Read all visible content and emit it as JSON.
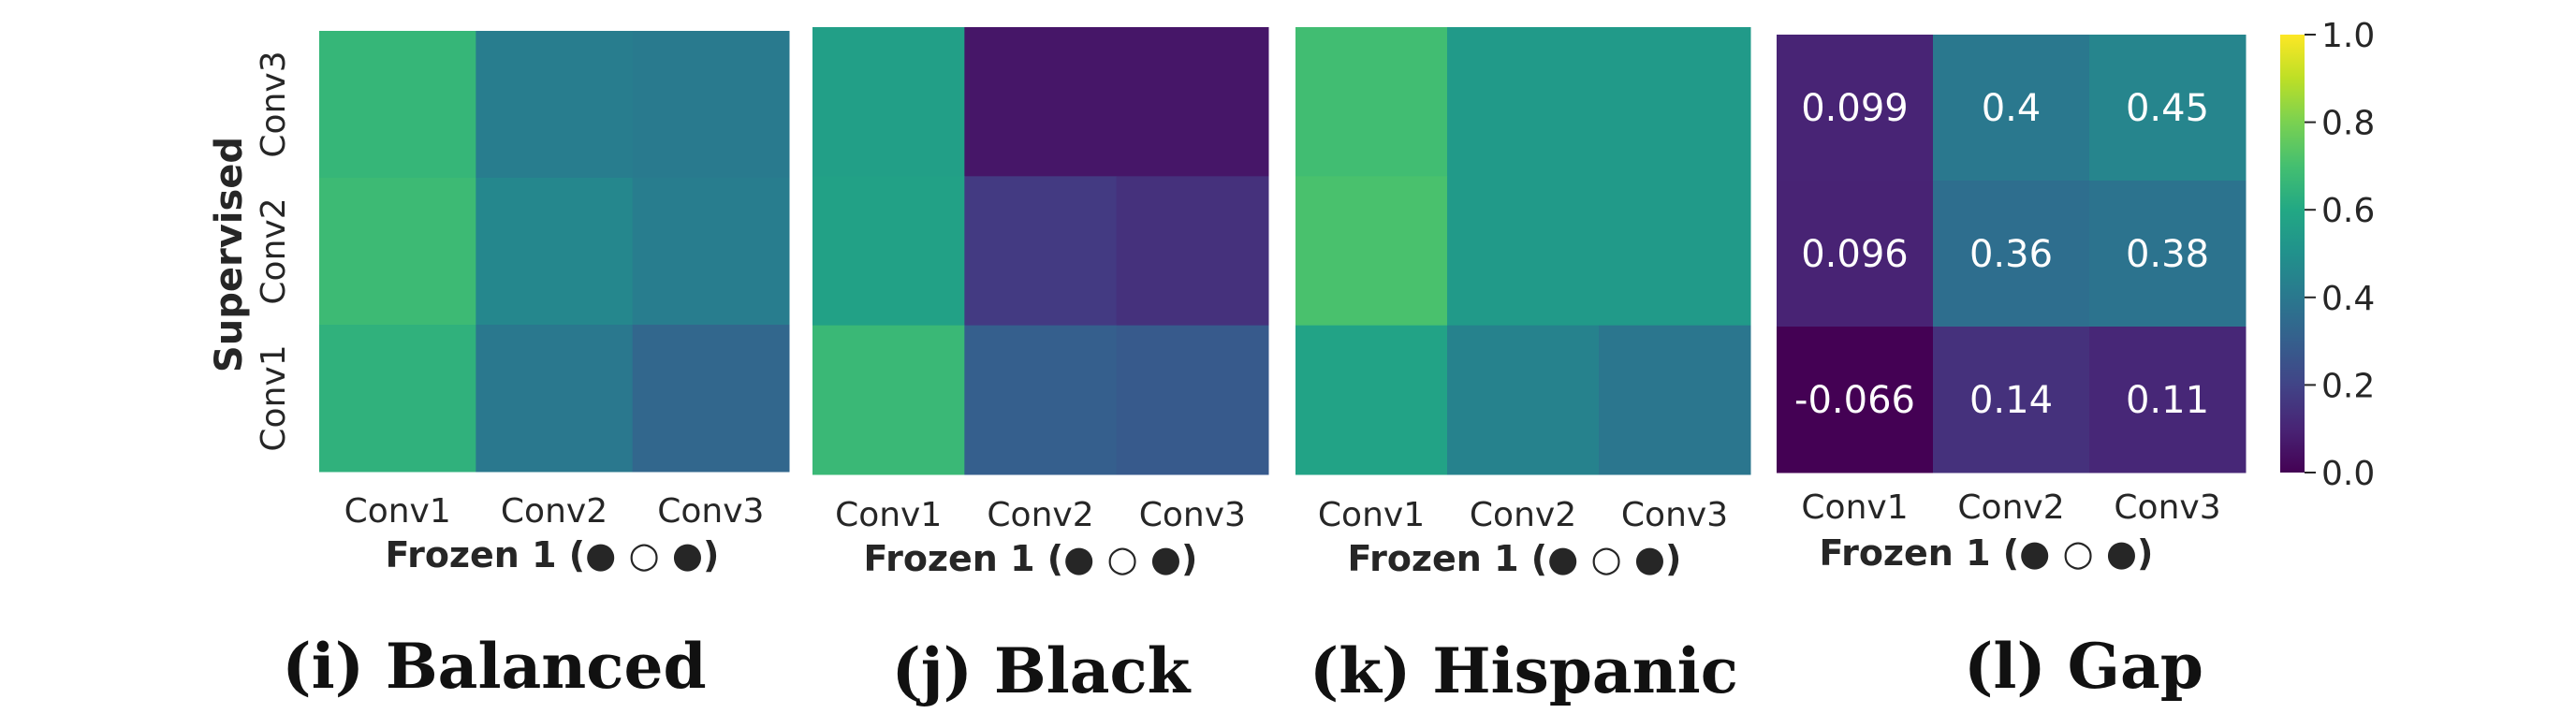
{
  "chart_data": [
    {
      "type": "heatmap",
      "caption": "(i) Balanced",
      "xlabel": "Frozen 1 (● ○ ●)",
      "ylabel": "Supervised",
      "x_categories": [
        "Conv1",
        "Conv2",
        "Conv3"
      ],
      "y_categories": [
        "Conv3",
        "Conv2",
        "Conv1"
      ],
      "values": [
        [
          0.66,
          0.42,
          0.41
        ],
        [
          0.68,
          0.46,
          0.42
        ],
        [
          0.64,
          0.4,
          0.33
        ]
      ],
      "vmin": 0.0,
      "vmax": 1.0
    },
    {
      "type": "heatmap",
      "caption": "(j) Black",
      "xlabel": "Frozen 1 (● ○ ●)",
      "x_categories": [
        "Conv1",
        "Conv2",
        "Conv3"
      ],
      "y_categories": [
        "Conv3",
        "Conv2",
        "Conv1"
      ],
      "values": [
        [
          0.56,
          0.06,
          0.06
        ],
        [
          0.57,
          0.17,
          0.14
        ],
        [
          0.67,
          0.3,
          0.28
        ]
      ],
      "vmin": 0.0,
      "vmax": 1.0
    },
    {
      "type": "heatmap",
      "caption": "(k) Hispanic",
      "xlabel": "Frozen 1 (● ○ ●)",
      "x_categories": [
        "Conv1",
        "Conv2",
        "Conv3"
      ],
      "y_categories": [
        "Conv3",
        "Conv2",
        "Conv1"
      ],
      "values": [
        [
          0.69,
          0.54,
          0.54
        ],
        [
          0.71,
          0.54,
          0.54
        ],
        [
          0.58,
          0.44,
          0.39
        ]
      ],
      "vmin": 0.0,
      "vmax": 1.0
    },
    {
      "type": "heatmap",
      "caption": "(l) Gap",
      "xlabel": "Frozen 1 (● ○ ●)",
      "x_categories": [
        "Conv1",
        "Conv2",
        "Conv3"
      ],
      "y_categories": [
        "Conv3",
        "Conv2",
        "Conv1"
      ],
      "values": [
        [
          0.099,
          0.4,
          0.45
        ],
        [
          0.096,
          0.36,
          0.38
        ],
        [
          -0.066,
          0.14,
          0.11
        ]
      ],
      "annotations": [
        [
          "0.099",
          "0.4",
          "0.45"
        ],
        [
          "0.096",
          "0.36",
          "0.38"
        ],
        [
          "-0.066",
          "0.14",
          "0.11"
        ]
      ],
      "vmin": 0.0,
      "vmax": 1.0,
      "colorbar": {
        "colormap": "viridis",
        "ticks": [
          "0.0",
          "0.2",
          "0.4",
          "0.6",
          "0.8",
          "1.0"
        ]
      }
    }
  ]
}
